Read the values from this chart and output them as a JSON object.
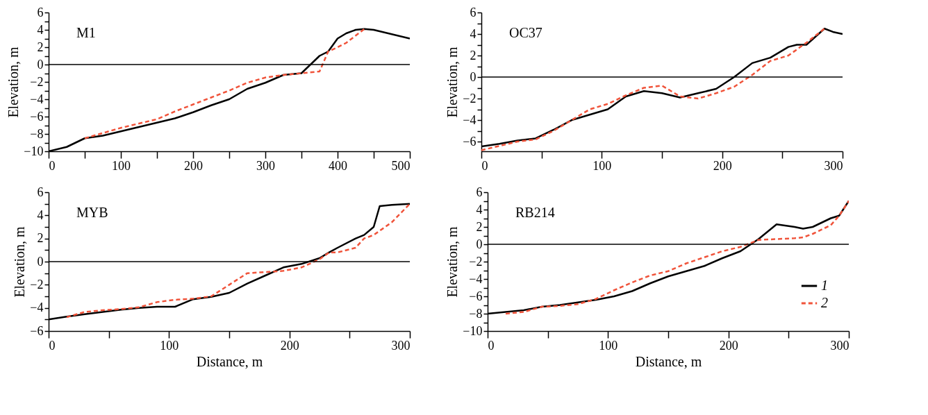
{
  "chart_data": [
    {
      "type": "line",
      "ylabel": "Elevation, m",
      "annotations": [
        "M1"
      ],
      "xlim": [
        0,
        500
      ],
      "ylim": [
        -10,
        6
      ],
      "xticks": [
        0,
        {
          "value": 50,
          "label": null
        },
        100,
        {
          "value": 150,
          "label": null
        },
        200,
        {
          "value": 250,
          "label": null
        },
        300,
        {
          "value": 350,
          "label": null
        },
        400,
        {
          "value": 450,
          "label": null
        },
        500
      ],
      "yticks": [
        -10,
        {
          "value": -9,
          "label": null
        },
        -8,
        {
          "value": -7,
          "label": null
        },
        -6,
        {
          "value": -5,
          "label": null
        },
        -4,
        {
          "value": -3,
          "label": null
        },
        -2,
        {
          "value": -1,
          "label": null
        },
        0,
        {
          "value": 1,
          "label": null
        },
        2,
        {
          "value": 3,
          "label": null
        },
        4,
        {
          "value": 5,
          "label": null
        },
        6
      ],
      "ref_lines": [
        {
          "axis": "y",
          "value": 0,
          "color": "#000000"
        }
      ],
      "legend": false,
      "series": [
        {
          "color": "#000000",
          "line_style": "solid",
          "x": [
            0,
            25,
            50,
            75,
            100,
            125,
            150,
            175,
            200,
            225,
            250,
            275,
            300,
            325,
            350,
            375,
            387,
            400,
            412,
            425,
            437,
            450,
            500
          ],
          "values": [
            -10,
            -9.5,
            -8.5,
            -8.2,
            -7.7,
            -7.2,
            -6.7,
            -6.2,
            -5.5,
            -4.7,
            -4,
            -2.8,
            -2.1,
            -1.2,
            -1,
            1,
            1.5,
            3,
            3.6,
            4,
            4.1,
            4,
            3
          ]
        },
        {
          "color": "#f0533a",
          "line_style": "dashed",
          "x": [
            50,
            75,
            100,
            125,
            150,
            175,
            200,
            225,
            250,
            275,
            300,
            325,
            350,
            375,
            387,
            400,
            412,
            437
          ],
          "values": [
            -8.5,
            -7.9,
            -7.3,
            -6.8,
            -6.3,
            -5.4,
            -4.6,
            -3.8,
            -3,
            -2.1,
            -1.5,
            -1.2,
            -1,
            -0.8,
            1.5,
            2,
            2.5,
            4.1
          ]
        }
      ]
    },
    {
      "type": "line",
      "ylabel": "Elevation, m",
      "annotations": [
        "OC37"
      ],
      "xlim": [
        0,
        300
      ],
      "ylim": [
        -6.9,
        6
      ],
      "xticks": [
        0,
        {
          "value": 50,
          "label": null
        },
        100,
        {
          "value": 150,
          "label": null
        },
        200,
        {
          "value": 250,
          "label": null
        },
        300
      ],
      "yticks": [
        -6,
        {
          "value": -5,
          "label": null
        },
        -4,
        {
          "value": -3,
          "label": null
        },
        -2,
        {
          "value": -1,
          "label": null
        },
        0,
        {
          "value": 1,
          "label": null
        },
        2,
        {
          "value": 3,
          "label": null
        },
        4,
        {
          "value": 5,
          "label": null
        },
        6
      ],
      "ref_lines": [
        {
          "axis": "y",
          "value": 0,
          "color": "#000000"
        }
      ],
      "legend": false,
      "series": [
        {
          "color": "#000000",
          "line_style": "solid",
          "x": [
            0,
            15,
            30,
            45,
            60,
            75,
            90,
            105,
            120,
            135,
            150,
            165,
            180,
            195,
            210,
            225,
            240,
            255,
            262,
            270,
            285,
            292,
            300
          ],
          "values": [
            -6.45,
            -6.2,
            -5.9,
            -5.7,
            -4.9,
            -4,
            -3.5,
            -3,
            -1.8,
            -1.3,
            -1.5,
            -1.9,
            -1.5,
            -1.1,
            0,
            1.3,
            1.8,
            2.8,
            3,
            3,
            4.5,
            4.2,
            4
          ]
        },
        {
          "color": "#f0533a",
          "line_style": "dashed",
          "x": [
            0,
            15,
            30,
            45,
            60,
            75,
            90,
            105,
            120,
            135,
            150,
            165,
            180,
            195,
            210,
            225,
            240,
            255,
            270,
            285
          ],
          "values": [
            -6.8,
            -6.4,
            -6,
            -5.8,
            -5,
            -4,
            -3,
            -2.5,
            -1.7,
            -1,
            -0.8,
            -1.8,
            -2,
            -1.5,
            -0.9,
            0.2,
            1.5,
            2,
            3.2,
            4.5
          ]
        }
      ]
    },
    {
      "type": "line",
      "xlabel": "Distance, m",
      "ylabel": "Elevation, m",
      "annotations": [
        "MYB"
      ],
      "xlim": [
        0,
        300
      ],
      "ylim": [
        -6,
        6
      ],
      "xticks": [
        0,
        {
          "value": 50,
          "label": null
        },
        100,
        {
          "value": 150,
          "label": null
        },
        200,
        {
          "value": 250,
          "label": null
        },
        300
      ],
      "yticks": [
        -6,
        {
          "value": -5,
          "label": null
        },
        -4,
        {
          "value": -3,
          "label": null
        },
        -2,
        {
          "value": -1,
          "label": null
        },
        0,
        {
          "value": 1,
          "label": null
        },
        2,
        {
          "value": 3,
          "label": null
        },
        4,
        {
          "value": 5,
          "label": null
        },
        6
      ],
      "ref_lines": [
        {
          "axis": "y",
          "value": 0,
          "color": "#000000"
        }
      ],
      "legend": false,
      "series": [
        {
          "color": "#000000",
          "line_style": "solid",
          "x": [
            0,
            15,
            30,
            45,
            60,
            75,
            90,
            105,
            120,
            135,
            150,
            165,
            180,
            195,
            210,
            225,
            233,
            240,
            255,
            262,
            270,
            275,
            285,
            300
          ],
          "values": [
            -5,
            -4.75,
            -4.55,
            -4.35,
            -4.15,
            -4,
            -3.9,
            -3.9,
            -3.25,
            -3.05,
            -2.7,
            -1.9,
            -1.2,
            -0.5,
            -0.2,
            0.3,
            0.8,
            1.2,
            2,
            2.3,
            3,
            4.8,
            4.9,
            5
          ]
        },
        {
          "color": "#f0533a",
          "line_style": "dashed",
          "x": [
            15,
            30,
            45,
            60,
            75,
            90,
            105,
            120,
            135,
            150,
            165,
            180,
            195,
            210,
            225,
            233,
            240,
            255,
            262,
            270,
            285,
            300
          ],
          "values": [
            -4.8,
            -4.35,
            -4.2,
            -4.1,
            -3.95,
            -3.5,
            -3.3,
            -3.2,
            -3,
            -2,
            -1,
            -0.9,
            -0.8,
            -0.5,
            0.2,
            0.8,
            0.8,
            1.2,
            2,
            2.3,
            3.4,
            5
          ]
        }
      ]
    },
    {
      "type": "line",
      "xlabel": "Distance, m",
      "ylabel": "Elevation, m",
      "annotations": [
        "RB214"
      ],
      "xlim": [
        0,
        300
      ],
      "ylim": [
        -10,
        6
      ],
      "xticks": [
        0,
        {
          "value": 50,
          "label": null
        },
        100,
        {
          "value": 150,
          "label": null
        },
        200,
        {
          "value": 250,
          "label": null
        },
        300
      ],
      "yticks": [
        -10,
        {
          "value": -9,
          "label": null
        },
        -8,
        {
          "value": -7,
          "label": null
        },
        -6,
        {
          "value": -5,
          "label": null
        },
        -4,
        {
          "value": -3,
          "label": null
        },
        -2,
        {
          "value": -1,
          "label": null
        },
        0,
        {
          "value": 1,
          "label": null
        },
        2,
        {
          "value": 3,
          "label": null
        },
        4,
        {
          "value": 5,
          "label": null
        },
        6
      ],
      "ref_lines": [
        {
          "axis": "y",
          "value": 0,
          "color": "#000000"
        }
      ],
      "legend": "bottom right",
      "series": [
        {
          "name": "1",
          "color": "#000000",
          "line_style": "solid",
          "x": [
            0,
            15,
            30,
            45,
            60,
            75,
            90,
            105,
            120,
            135,
            150,
            165,
            180,
            195,
            210,
            225,
            240,
            255,
            262,
            270,
            285,
            292,
            300
          ],
          "values": [
            -8,
            -7.8,
            -7.6,
            -7.2,
            -7,
            -6.7,
            -6.4,
            -6,
            -5.4,
            -4.5,
            -3.7,
            -3.1,
            -2.5,
            -1.6,
            -0.8,
            0.6,
            2.3,
            2,
            1.8,
            2,
            3,
            3.3,
            5
          ]
        },
        {
          "name": "2",
          "color": "#f0533a",
          "line_style": "dashed",
          "x": [
            15,
            30,
            45,
            60,
            75,
            90,
            105,
            120,
            135,
            150,
            165,
            180,
            195,
            210,
            225,
            240,
            255,
            262,
            270,
            285,
            292,
            300
          ],
          "values": [
            -8,
            -7.8,
            -7.2,
            -7.1,
            -6.9,
            -6.3,
            -5.3,
            -4.4,
            -3.6,
            -3.1,
            -2.2,
            -1.5,
            -0.8,
            -0.3,
            0.5,
            0.6,
            0.7,
            0.8,
            1.2,
            2.2,
            3.3,
            5
          ]
        }
      ]
    }
  ]
}
